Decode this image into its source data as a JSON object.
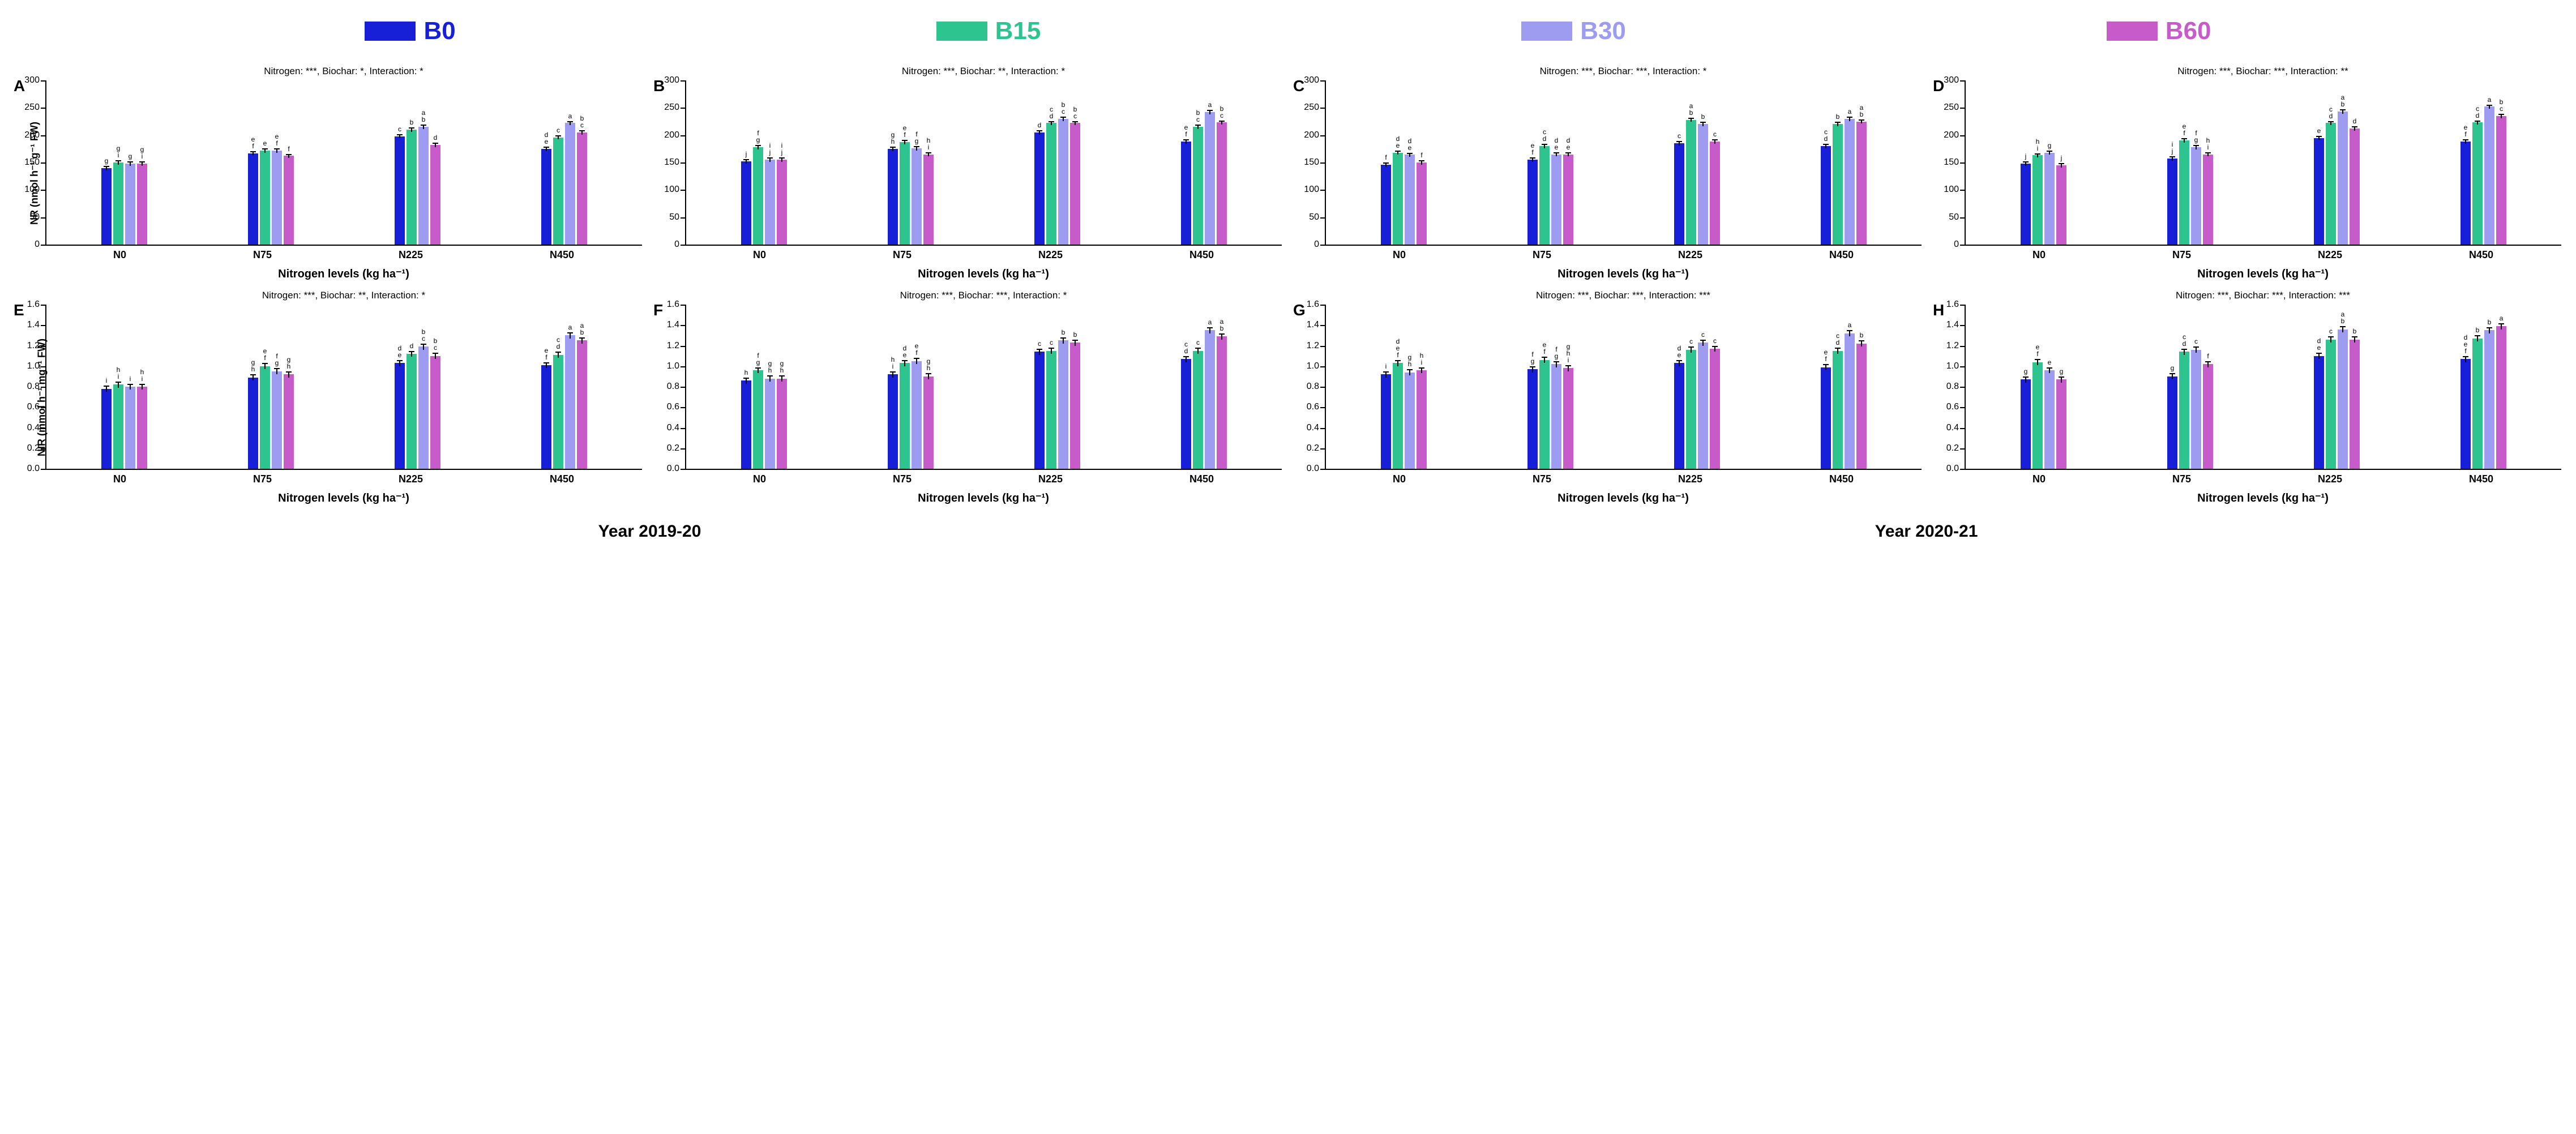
{
  "legend": {
    "items": [
      {
        "label": "B0",
        "color": "#1720d6"
      },
      {
        "label": "B15",
        "color": "#2ec48f"
      },
      {
        "label": "B30",
        "color": "#9e9cf0"
      },
      {
        "label": "B60",
        "color": "#c85bca"
      }
    ],
    "label_fontsize": 44
  },
  "series_colors": [
    "#1720d6",
    "#2ec48f",
    "#9e9cf0",
    "#c85bca"
  ],
  "x_categories": [
    "N0",
    "N75",
    "N225",
    "N450"
  ],
  "x_axis_label": "Nitrogen levels (kg ha⁻¹)",
  "years": {
    "left": "Year 2019-20",
    "right": "Year 2020-21"
  },
  "axis_color": "#000000",
  "background_color": "#ffffff",
  "panelA": {
    "letter": "A",
    "header": "Nitrogen: ***, Biochar: *, Interaction: *",
    "ylabel": "NR (nmol h⁻¹ g⁻¹ FW)",
    "ylim": [
      0,
      300
    ],
    "ytick_step": 50,
    "error": 4,
    "groups": [
      {
        "values": [
          140,
          150,
          148,
          148
        ],
        "letters": [
          "g",
          "g\ni",
          "g",
          "g\ni"
        ]
      },
      {
        "values": [
          167,
          172,
          172,
          162
        ],
        "letters": [
          "e\nf",
          "e",
          "e\nf",
          "f"
        ]
      },
      {
        "values": [
          198,
          210,
          215,
          182
        ],
        "letters": [
          "c",
          "b",
          "a\nb",
          "d"
        ]
      },
      {
        "values": [
          175,
          196,
          222,
          205
        ],
        "letters": [
          "d\ne",
          "c",
          "a",
          "b\nc"
        ]
      }
    ]
  },
  "panelB": {
    "letter": "B",
    "header": "Nitrogen: ***, Biochar: **, Interaction: *",
    "ylabel": "",
    "ylim": [
      0,
      300
    ],
    "ytick_step": 50,
    "error": 4,
    "groups": [
      {
        "values": [
          152,
          178,
          155,
          155
        ],
        "letters": [
          "j",
          "f\ng",
          "i\nj",
          "i\nj"
        ]
      },
      {
        "values": [
          175,
          187,
          176,
          165
        ],
        "letters": [
          "g\nh",
          "e\nf",
          "f\ng",
          "h\ni"
        ]
      },
      {
        "values": [
          205,
          222,
          230,
          222
        ],
        "letters": [
          "d",
          "c\nd",
          "b\nc",
          "b\nc"
        ]
      },
      {
        "values": [
          188,
          215,
          242,
          223
        ],
        "letters": [
          "e\nf",
          "b\nc",
          "a",
          "b\nc"
        ]
      }
    ]
  },
  "panelC": {
    "letter": "C",
    "header": "Nitrogen: ***, Biochar: ***, Interaction: *",
    "ylabel": "",
    "ylim": [
      0,
      300
    ],
    "ytick_step": 50,
    "error": 4,
    "groups": [
      {
        "values": [
          146,
          168,
          164,
          150
        ],
        "letters": [
          "f",
          "d\ne",
          "d\ne",
          "f"
        ]
      },
      {
        "values": [
          155,
          180,
          165,
          165
        ],
        "letters": [
          "e\nf",
          "c\nd",
          "d\ne",
          "d\ne"
        ]
      },
      {
        "values": [
          185,
          228,
          220,
          188
        ],
        "letters": [
          "c",
          "a\nb",
          "b",
          "c"
        ]
      },
      {
        "values": [
          180,
          220,
          230,
          225
        ],
        "letters": [
          "c\nd",
          "b",
          "a",
          "a\nb"
        ]
      }
    ]
  },
  "panelD": {
    "letter": "D",
    "header": "Nitrogen: ***, Biochar: ***, Interaction: **",
    "ylabel": "",
    "ylim": [
      0,
      300
    ],
    "ytick_step": 50,
    "error": 4,
    "groups": [
      {
        "values": [
          148,
          163,
          168,
          145
        ],
        "letters": [
          "j",
          "h\ni",
          "g",
          "j"
        ]
      },
      {
        "values": [
          157,
          190,
          178,
          165
        ],
        "letters": [
          "i\nj",
          "e\nf",
          "f\ng",
          "h\ni"
        ]
      },
      {
        "values": [
          195,
          222,
          243,
          212
        ],
        "letters": [
          "e",
          "c\nd",
          "a\nb",
          "d"
        ]
      },
      {
        "values": [
          188,
          223,
          252,
          235
        ],
        "letters": [
          "e\nf",
          "c\nd",
          "a",
          "b\nc"
        ]
      }
    ]
  },
  "panelE": {
    "letter": "E",
    "header": "Nitrogen: ***, Biochar: **, Interaction: *",
    "ylabel": "NIR (mmol h⁻¹ mg⁻¹ FW)",
    "ylim": [
      0,
      1.6
    ],
    "ytick_step": 0.2,
    "error": 0.03,
    "groups": [
      {
        "values": [
          0.78,
          0.82,
          0.8,
          0.8
        ],
        "letters": [
          "i",
          "h\ni",
          "i",
          "h\ni"
        ]
      },
      {
        "values": [
          0.89,
          1.0,
          0.95,
          0.92
        ],
        "letters": [
          "g\nh",
          "e\nf",
          "f\ng",
          "g\nh"
        ]
      },
      {
        "values": [
          1.03,
          1.12,
          1.19,
          1.1
        ],
        "letters": [
          "d\ne",
          "d",
          "b\nc",
          "b\nc"
        ]
      },
      {
        "values": [
          1.01,
          1.11,
          1.3,
          1.25
        ],
        "letters": [
          "e\nf",
          "c\nd",
          "a",
          "a\nb"
        ]
      }
    ]
  },
  "panelF": {
    "letter": "F",
    "header": "Nitrogen: ***, Biochar: ***, Interaction: *",
    "ylabel": "",
    "ylim": [
      0,
      1.6
    ],
    "ytick_step": 0.2,
    "error": 0.03,
    "groups": [
      {
        "values": [
          0.86,
          0.96,
          0.88,
          0.88
        ],
        "letters": [
          "h",
          "f\ng",
          "g\nh",
          "g\nh"
        ]
      },
      {
        "values": [
          0.92,
          1.03,
          1.05,
          0.9
        ],
        "letters": [
          "h\ni",
          "d\ne",
          "e\nf",
          "g\nh"
        ]
      },
      {
        "values": [
          1.14,
          1.15,
          1.25,
          1.23
        ],
        "letters": [
          "c",
          "c",
          "b",
          "b"
        ]
      },
      {
        "values": [
          1.07,
          1.15,
          1.35,
          1.29
        ],
        "letters": [
          "c\nd",
          "c",
          "a",
          "a\nb"
        ]
      }
    ]
  },
  "panelG": {
    "letter": "G",
    "header": "Nitrogen: ***, Biochar: ***, Interaction: ***",
    "ylabel": "",
    "ylim": [
      0,
      1.6
    ],
    "ytick_step": 0.2,
    "error": 0.03,
    "groups": [
      {
        "values": [
          0.92,
          1.03,
          0.94,
          0.96
        ],
        "letters": [
          "i",
          "d\ne\nf",
          "g\nh",
          "h\ni"
        ]
      },
      {
        "values": [
          0.97,
          1.06,
          1.02,
          0.98
        ],
        "letters": [
          "f\ng",
          "e\nf",
          "f\ng",
          "g\nh\ni"
        ]
      },
      {
        "values": [
          1.03,
          1.16,
          1.23,
          1.17
        ],
        "letters": [
          "d\ne",
          "c",
          "c",
          "c"
        ]
      },
      {
        "values": [
          0.99,
          1.15,
          1.32,
          1.22
        ],
        "letters": [
          "e\nf",
          "c\nd",
          "a",
          "b"
        ]
      }
    ]
  },
  "panelH": {
    "letter": "H",
    "header": "Nitrogen: ***, Biochar: ***, Interaction: ***",
    "ylabel": "",
    "ylim": [
      0,
      1.6
    ],
    "ytick_step": 0.2,
    "error": 0.03,
    "groups": [
      {
        "values": [
          0.87,
          1.04,
          0.96,
          0.87
        ],
        "letters": [
          "g",
          "e\nf",
          "e",
          "g"
        ]
      },
      {
        "values": [
          0.9,
          1.14,
          1.16,
          1.02
        ],
        "letters": [
          "g",
          "c\nd",
          "c",
          "f"
        ]
      },
      {
        "values": [
          1.1,
          1.26,
          1.36,
          1.26
        ],
        "letters": [
          "d\ne",
          "c",
          "a\nb",
          "b"
        ]
      },
      {
        "values": [
          1.07,
          1.27,
          1.35,
          1.39
        ],
        "letters": [
          "d\ne\nf",
          "b",
          "b",
          "a"
        ]
      }
    ]
  }
}
